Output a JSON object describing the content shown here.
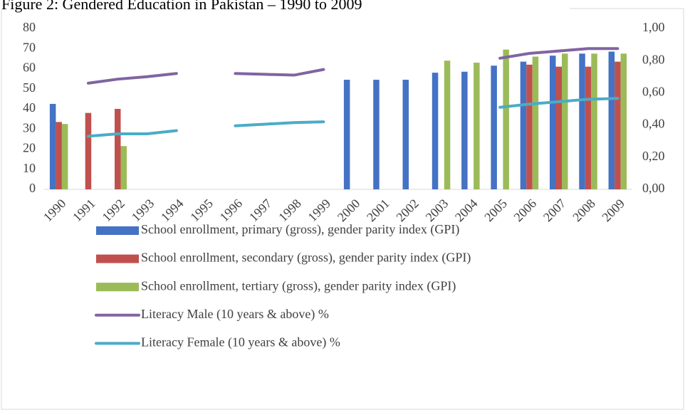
{
  "chart_data": {
    "type": "bar",
    "title": "Figure 2: Gendered Education in Pakistan – 1990 to 2009",
    "categories": [
      "1990",
      "1991",
      "1992",
      "1993",
      "1994",
      "1995",
      "1996",
      "1997",
      "1998",
      "1999",
      "2000",
      "2001",
      "2002",
      "2003",
      "2004",
      "2005",
      "2006",
      "2007",
      "2008",
      "2009"
    ],
    "series": [
      {
        "name": "School enrollment, primary (gross), gender parity index (GPI)",
        "color": "#4472c4",
        "type": "bar",
        "values": [
          42.5,
          null,
          null,
          null,
          null,
          null,
          null,
          null,
          null,
          null,
          54.5,
          54.5,
          54.5,
          58,
          58.5,
          61.5,
          63.5,
          66.5,
          67.5,
          68.5
        ]
      },
      {
        "name": "School enrollment, secondary (gross), gender parity index (GPI)",
        "color": "#c0504d",
        "type": "bar",
        "values": [
          33.5,
          38,
          40,
          null,
          null,
          null,
          null,
          null,
          null,
          null,
          null,
          null,
          null,
          null,
          null,
          null,
          62,
          61,
          61,
          63.5
        ]
      },
      {
        "name": "School enrollment, tertiary (gross), gender parity index (GPI)",
        "color": "#9bbb59",
        "type": "bar",
        "values": [
          32.5,
          null,
          21.5,
          null,
          null,
          null,
          null,
          null,
          null,
          null,
          null,
          null,
          null,
          64,
          63,
          69.5,
          66,
          67.5,
          67.5,
          67.5
        ]
      },
      {
        "name": "Literacy Male (10 years & above) %",
        "color": "#8064a2",
        "type": "line",
        "axis": "y2",
        "values": [
          null,
          0.66,
          0.685,
          0.7,
          0.72,
          null,
          0.72,
          0.715,
          0.71,
          0.745,
          null,
          null,
          null,
          null,
          null,
          0.815,
          0.845,
          0.86,
          0.875,
          0.875
        ]
      },
      {
        "name": "Literacy Female (10 years & above) %",
        "color": "#4bacc6",
        "type": "line",
        "axis": "y2",
        "values": [
          null,
          0.33,
          0.345,
          0.345,
          0.365,
          null,
          0.395,
          0.405,
          0.415,
          0.42,
          null,
          null,
          null,
          null,
          null,
          0.51,
          0.53,
          0.545,
          0.56,
          0.565
        ]
      }
    ],
    "ylim": [
      0,
      80
    ],
    "yticks": [
      0,
      10,
      20,
      30,
      40,
      50,
      60,
      70,
      80
    ],
    "y2lim": [
      0,
      1
    ],
    "y2ticks": [
      {
        "value": 0,
        "label": "0,00"
      },
      {
        "value": 0.2,
        "label": "0,20"
      },
      {
        "value": 0.4,
        "label": "0,40"
      },
      {
        "value": 0.6,
        "label": "0,60"
      },
      {
        "value": 0.8,
        "label": "0,80"
      },
      {
        "value": 1,
        "label": "1,00"
      }
    ],
    "grid": false,
    "legend": "bottom"
  }
}
